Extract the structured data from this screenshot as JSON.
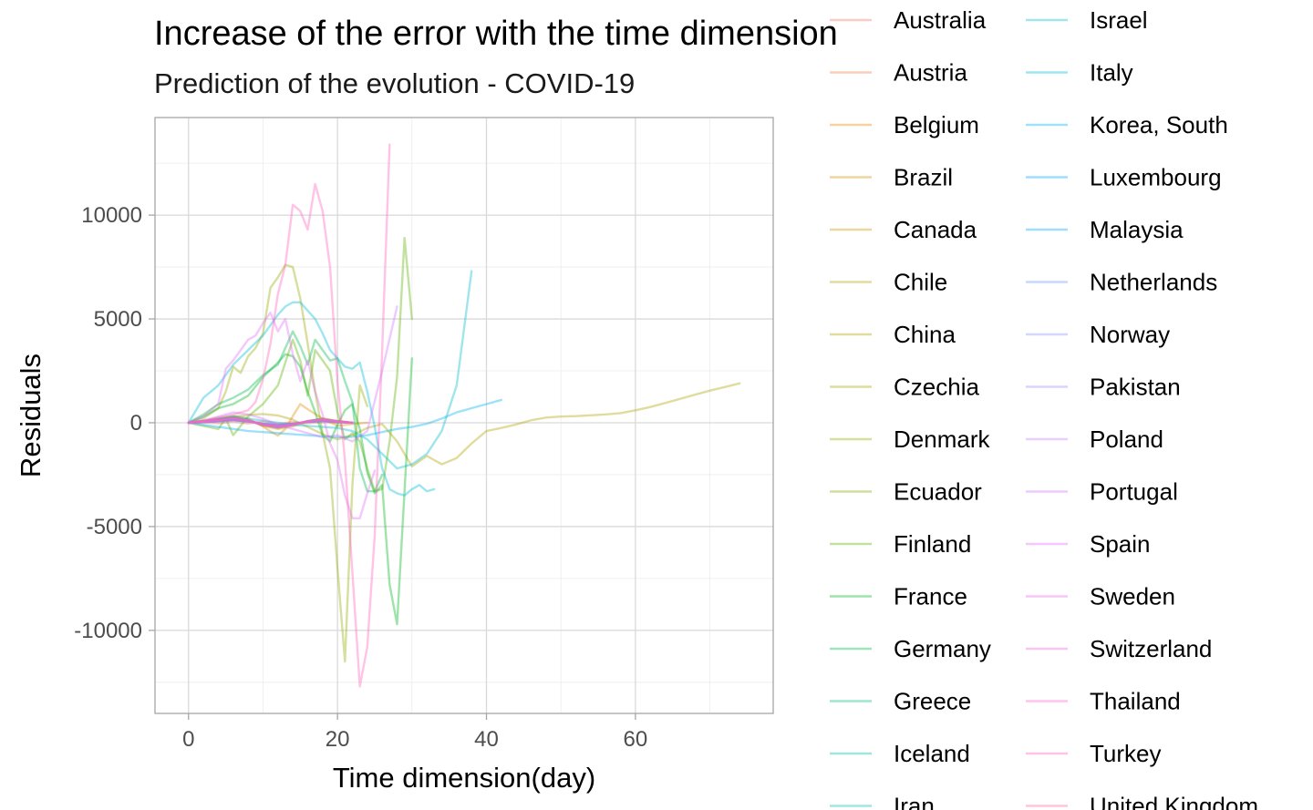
{
  "chart_data": {
    "type": "line",
    "title": "Increase of the error with the time dimension",
    "subtitle": "Prediction of the evolution - COVID-19",
    "xlabel": "Time dimension(day)",
    "ylabel": "Residuals",
    "xlim": [
      -4.5,
      78.5
    ],
    "ylim": [
      -14000,
      14700
    ],
    "x_ticks": [
      0,
      20,
      40,
      60
    ],
    "x_tick_labels": [
      "0",
      "20",
      "40",
      "60"
    ],
    "x_minor_ticks": [
      10,
      30,
      50,
      70
    ],
    "y_ticks": [
      -10000,
      -5000,
      0,
      5000,
      10000
    ],
    "y_tick_labels": [
      "-10000",
      "-5000",
      "0",
      "5000",
      "10000"
    ],
    "y_minor_ticks": [
      -12500,
      -7500,
      -2500,
      2500,
      7500,
      12500
    ],
    "grid": true,
    "legend_position": "right",
    "series": [
      {
        "name": "Australia",
        "color": "#F8766D",
        "x": [
          0,
          2,
          4,
          6,
          8,
          10,
          12,
          14,
          16,
          18,
          20
        ],
        "y": [
          0,
          20,
          -30,
          60,
          -40,
          80,
          -60,
          40,
          -20,
          30,
          0
        ]
      },
      {
        "name": "Austria",
        "color": "#EE8043",
        "x": [
          0,
          2,
          4,
          6,
          8,
          10,
          12,
          14,
          16,
          18,
          20,
          22
        ],
        "y": [
          0,
          60,
          160,
          260,
          120,
          -120,
          -260,
          -120,
          90,
          200,
          80,
          0
        ]
      },
      {
        "name": "Belgium",
        "color": "#E48900",
        "x": [
          0,
          2,
          4,
          6,
          8,
          10,
          11,
          12,
          13,
          14,
          15,
          16,
          18,
          20,
          22,
          24
        ],
        "y": [
          0,
          90,
          230,
          330,
          210,
          -180,
          -420,
          -620,
          -300,
          320,
          900,
          650,
          200,
          -150,
          -60,
          0
        ]
      },
      {
        "name": "Brazil",
        "color": "#D79200",
        "x": [
          0,
          2,
          4,
          6,
          8,
          10,
          12,
          14,
          16,
          18,
          20,
          22
        ],
        "y": [
          0,
          40,
          110,
          180,
          90,
          -90,
          -160,
          -70,
          60,
          140,
          50,
          0
        ]
      },
      {
        "name": "Canada",
        "color": "#C99800",
        "x": [
          0,
          2,
          4,
          6,
          8,
          10,
          12,
          14,
          16,
          18,
          20,
          22
        ],
        "y": [
          0,
          70,
          180,
          280,
          140,
          -160,
          -300,
          -180,
          70,
          210,
          90,
          0
        ]
      },
      {
        "name": "Chile",
        "color": "#B9A100",
        "x": [
          0,
          2,
          4,
          6,
          8,
          10,
          12,
          14,
          16,
          18,
          20,
          22
        ],
        "y": [
          0,
          30,
          90,
          150,
          70,
          -60,
          -140,
          -60,
          40,
          100,
          30,
          0
        ]
      },
      {
        "name": "China",
        "color": "#AEA200",
        "x": [
          0,
          2,
          4,
          6,
          8,
          10,
          12,
          14,
          16,
          18,
          20,
          22,
          24,
          26,
          28,
          30,
          32,
          34,
          36,
          38,
          40,
          42,
          44,
          46,
          48,
          50,
          52,
          54,
          56,
          58,
          60,
          62,
          64,
          66,
          68,
          70,
          72,
          74
        ],
        "y": [
          0,
          50,
          150,
          280,
          380,
          420,
          350,
          150,
          -200,
          -550,
          -800,
          -600,
          -250,
          -60,
          -900,
          -2100,
          -1600,
          -2000,
          -1700,
          -1000,
          -400,
          -250,
          -80,
          120,
          250,
          300,
          320,
          360,
          400,
          460,
          600,
          760,
          950,
          1150,
          1350,
          1550,
          1720,
          1900
        ]
      },
      {
        "name": "Czechia",
        "color": "#A3A500",
        "x": [
          0,
          2,
          4,
          6,
          8,
          10,
          12,
          14,
          16,
          18,
          20,
          22
        ],
        "y": [
          0,
          50,
          120,
          200,
          100,
          -80,
          -180,
          -90,
          60,
          130,
          50,
          0
        ]
      },
      {
        "name": "Denmark",
        "color": "#93AA00",
        "x": [
          0,
          2,
          4,
          5,
          6,
          7,
          8,
          9,
          10,
          11,
          12,
          13,
          14,
          15,
          16,
          17,
          18,
          19,
          20,
          21,
          22,
          23,
          24
        ],
        "y": [
          0,
          200,
          700,
          1500,
          2700,
          2400,
          3200,
          3600,
          4300,
          6500,
          7000,
          7600,
          7500,
          6000,
          3800,
          1500,
          -500,
          -2200,
          -7000,
          -11500,
          -3000,
          1800,
          800
        ]
      },
      {
        "name": "Ecuador",
        "color": "#7CAE00",
        "x": [
          0,
          2,
          4,
          6,
          8,
          10,
          12,
          14,
          16,
          18,
          20,
          22
        ],
        "y": [
          0,
          60,
          140,
          230,
          110,
          -100,
          -210,
          -100,
          70,
          160,
          60,
          0
        ]
      },
      {
        "name": "Finland",
        "color": "#5BB300",
        "x": [
          0,
          2,
          4,
          5,
          6,
          8,
          10,
          12,
          14,
          15,
          16,
          17,
          18,
          19,
          20,
          21,
          22,
          23,
          24,
          25,
          26,
          27,
          28,
          29,
          30
        ],
        "y": [
          0,
          -150,
          -300,
          200,
          -600,
          300,
          900,
          1800,
          4000,
          3000,
          1300,
          3500,
          3000,
          2500,
          500,
          -800,
          -500,
          -900,
          -2200,
          -3300,
          -3200,
          -900,
          2200,
          8900,
          5000
        ]
      },
      {
        "name": "France",
        "color": "#00B81F",
        "x": [
          0,
          2,
          4,
          6,
          8,
          10,
          12,
          13,
          14,
          15,
          16,
          17,
          18,
          19,
          20,
          21,
          22,
          23,
          24,
          25,
          26,
          27,
          28,
          30
        ],
        "y": [
          0,
          300,
          700,
          900,
          1300,
          2200,
          2900,
          3300,
          3200,
          2700,
          1500,
          500,
          -600,
          -900,
          -100,
          600,
          900,
          -300,
          -2400,
          -3400,
          -3000,
          -7800,
          -9700,
          3100
        ]
      },
      {
        "name": "Germany",
        "color": "#00BB4E",
        "x": [
          0,
          2,
          4,
          6,
          8,
          10,
          12,
          14,
          15,
          16,
          17,
          18,
          19,
          20,
          21,
          22,
          23,
          24,
          25,
          26
        ],
        "y": [
          0,
          400,
          900,
          1200,
          1600,
          2300,
          2800,
          4400,
          3700,
          2800,
          4000,
          3500,
          3000,
          3100,
          2000,
          1000,
          -2200,
          -3300,
          -3300,
          -2500
        ]
      },
      {
        "name": "Greece",
        "color": "#00BF7D",
        "x": [
          0,
          2,
          4,
          6,
          8,
          10,
          12,
          14,
          16,
          18,
          20,
          22
        ],
        "y": [
          0,
          40,
          100,
          170,
          80,
          -70,
          -150,
          -70,
          50,
          120,
          40,
          0
        ]
      },
      {
        "name": "Iceland",
        "color": "#00C1A3",
        "x": [
          0,
          2,
          4,
          6,
          8,
          10,
          12,
          14,
          16,
          18,
          20,
          22
        ],
        "y": [
          0,
          30,
          80,
          130,
          60,
          -50,
          -120,
          -50,
          40,
          90,
          30,
          0
        ]
      },
      {
        "name": "Iran",
        "color": "#00C0B8",
        "x": [
          0,
          2,
          4,
          6,
          8,
          10,
          12,
          14,
          16,
          18,
          20,
          22
        ],
        "y": [
          0,
          70,
          160,
          250,
          120,
          -110,
          -230,
          -110,
          80,
          170,
          70,
          0
        ]
      },
      {
        "name": "Israel",
        "color": "#00BECC",
        "x": [
          0,
          2,
          4,
          6,
          8,
          10,
          12,
          14,
          16,
          18,
          20,
          22,
          24,
          26,
          28,
          30,
          32,
          34,
          36,
          38
        ],
        "y": [
          0,
          80,
          180,
          300,
          200,
          100,
          0,
          -100,
          -150,
          -200,
          -250,
          -400,
          -800,
          -1500,
          -2200,
          -2000,
          -1500,
          -400,
          1800,
          7300
        ]
      },
      {
        "name": "Italy",
        "color": "#00BADE",
        "x": [
          0,
          2,
          4,
          6,
          8,
          10,
          12,
          13,
          14,
          15,
          16,
          17,
          18,
          19,
          20,
          21,
          22,
          23,
          24,
          25,
          26,
          27,
          28,
          29,
          30,
          31,
          32,
          33
        ],
        "y": [
          0,
          1200,
          1800,
          2800,
          3500,
          4200,
          5200,
          5600,
          5800,
          5800,
          5400,
          5000,
          4300,
          3500,
          3100,
          2700,
          2600,
          2900,
          1500,
          -200,
          -2200,
          -3200,
          -3400,
          -3500,
          -3200,
          -3000,
          -3300,
          -3200
        ]
      },
      {
        "name": "Korea, South",
        "color": "#00B3EE",
        "x": [
          0,
          2,
          4,
          6,
          8,
          10,
          12,
          14,
          16,
          18,
          20,
          22,
          24,
          26,
          28,
          30,
          32,
          34,
          36,
          38,
          40,
          42
        ],
        "y": [
          0,
          -100,
          -200,
          -300,
          -400,
          -450,
          -500,
          -550,
          -600,
          -650,
          -700,
          -680,
          -600,
          -450,
          -300,
          -200,
          -50,
          200,
          500,
          700,
          900,
          1100
        ]
      },
      {
        "name": "Luxembourg",
        "color": "#00ABFD",
        "x": [
          0,
          2,
          4,
          6,
          8,
          10,
          12,
          14,
          16,
          18,
          20,
          22
        ],
        "y": [
          0,
          30,
          70,
          120,
          60,
          -40,
          -100,
          -40,
          30,
          80,
          30,
          0
        ]
      },
      {
        "name": "Malaysia",
        "color": "#00A5FF",
        "x": [
          0,
          2,
          4,
          6,
          8,
          10,
          12,
          14,
          16,
          18,
          20,
          22
        ],
        "y": [
          0,
          40,
          100,
          160,
          80,
          -70,
          -140,
          -60,
          50,
          110,
          40,
          0
        ]
      },
      {
        "name": "Netherlands",
        "color": "#619CFF",
        "x": [
          0,
          2,
          4,
          6,
          8,
          10,
          12,
          14,
          16,
          18,
          20,
          22
        ],
        "y": [
          0,
          60,
          150,
          240,
          120,
          -100,
          -220,
          -100,
          80,
          170,
          60,
          0
        ]
      },
      {
        "name": "Norway",
        "color": "#8B93FF",
        "x": [
          0,
          2,
          4,
          6,
          8,
          10,
          12,
          14,
          16,
          18,
          20,
          22
        ],
        "y": [
          0,
          30,
          80,
          140,
          70,
          -60,
          -130,
          -60,
          40,
          100,
          40,
          0
        ]
      },
      {
        "name": "Pakistan",
        "color": "#A58AFF",
        "x": [
          0,
          2,
          4,
          6,
          8,
          10,
          12,
          14,
          16,
          18,
          20,
          22
        ],
        "y": [
          0,
          50,
          120,
          200,
          100,
          -90,
          -190,
          -90,
          60,
          140,
          50,
          0
        ]
      },
      {
        "name": "Poland",
        "color": "#BF80FF",
        "x": [
          0,
          2,
          4,
          6,
          8,
          10,
          12,
          14,
          16,
          18,
          20,
          22
        ],
        "y": [
          0,
          40,
          110,
          180,
          90,
          -80,
          -170,
          -80,
          60,
          130,
          50,
          0
        ]
      },
      {
        "name": "Portugal",
        "color": "#D277FF",
        "x": [
          0,
          2,
          4,
          6,
          8,
          10,
          12,
          14,
          16,
          18,
          20,
          22,
          24,
          26,
          28
        ],
        "y": [
          0,
          100,
          300,
          500,
          400,
          200,
          -100,
          -300,
          -500,
          -700,
          -600,
          -900,
          -400,
          2500,
          5600
        ]
      },
      {
        "name": "Spain",
        "color": "#E36EF6",
        "x": [
          0,
          2,
          4,
          5,
          6,
          7,
          8,
          9,
          10,
          11,
          12,
          13,
          14,
          15,
          16,
          17,
          18,
          19,
          20,
          21,
          22,
          23,
          24,
          25
        ],
        "y": [
          0,
          300,
          900,
          2600,
          3000,
          3500,
          4000,
          4200,
          4800,
          5300,
          4400,
          5000,
          3300,
          2000,
          3000,
          1500,
          400,
          -1000,
          -1800,
          -3500,
          -4600,
          -4600,
          -3400,
          -2300
        ]
      },
      {
        "name": "Sweden",
        "color": "#EF67EB",
        "x": [
          0,
          2,
          4,
          6,
          8,
          10,
          12,
          14,
          16,
          18,
          20,
          22
        ],
        "y": [
          0,
          50,
          130,
          210,
          100,
          -90,
          -200,
          -90,
          70,
          150,
          60,
          0
        ]
      },
      {
        "name": "Switzerland",
        "color": "#F863DF",
        "x": [
          0,
          2,
          4,
          6,
          8,
          10,
          12,
          14,
          16,
          18,
          20,
          22
        ],
        "y": [
          0,
          60,
          150,
          230,
          110,
          -100,
          -210,
          -100,
          70,
          160,
          60,
          0
        ]
      },
      {
        "name": "Thailand",
        "color": "#FE61CF",
        "x": [
          0,
          2,
          4,
          6,
          8,
          10,
          12,
          14,
          16,
          18,
          20,
          22
        ],
        "y": [
          0,
          30,
          70,
          120,
          60,
          -50,
          -110,
          -50,
          40,
          90,
          30,
          0
        ]
      },
      {
        "name": "Turkey",
        "color": "#FF62BC",
        "x": [
          0,
          2,
          4,
          6,
          8,
          9,
          10,
          11,
          12,
          13,
          14,
          15,
          16,
          17,
          18,
          19,
          20,
          21,
          22,
          23,
          24,
          25,
          26,
          27
        ],
        "y": [
          0,
          100,
          250,
          400,
          600,
          1000,
          2100,
          3800,
          6200,
          7600,
          10500,
          10200,
          9300,
          11500,
          10200,
          7500,
          2000,
          -1800,
          -7200,
          -12700,
          -10800,
          -5400,
          3500,
          13400
        ]
      },
      {
        "name": "United Kingdom",
        "color": "#FF67A4",
        "x": [
          0,
          2,
          4,
          6,
          8,
          10,
          12,
          14,
          16,
          18,
          20,
          22
        ],
        "y": [
          0,
          50,
          130,
          210,
          110,
          -90,
          -190,
          -90,
          70,
          150,
          60,
          0
        ]
      }
    ]
  }
}
